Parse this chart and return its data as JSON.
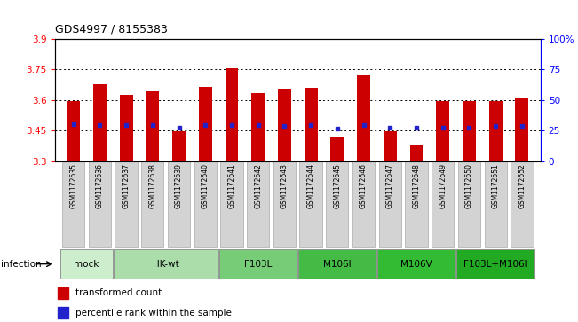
{
  "title": "GDS4997 / 8155383",
  "samples": [
    "GSM1172635",
    "GSM1172636",
    "GSM1172637",
    "GSM1172638",
    "GSM1172639",
    "GSM1172640",
    "GSM1172641",
    "GSM1172642",
    "GSM1172643",
    "GSM1172644",
    "GSM1172645",
    "GSM1172646",
    "GSM1172647",
    "GSM1172648",
    "GSM1172649",
    "GSM1172650",
    "GSM1172651",
    "GSM1172652"
  ],
  "bar_tops": [
    3.595,
    3.678,
    3.625,
    3.64,
    3.445,
    3.662,
    3.755,
    3.633,
    3.655,
    3.66,
    3.415,
    3.72,
    3.445,
    3.375,
    3.595,
    3.595,
    3.592,
    3.605
  ],
  "blue_y": [
    3.48,
    3.476,
    3.474,
    3.474,
    3.462,
    3.474,
    3.476,
    3.474,
    3.472,
    3.474,
    3.46,
    3.474,
    3.462,
    3.462,
    3.464,
    3.464,
    3.472,
    3.472
  ],
  "y_min": 3.3,
  "y_max": 3.9,
  "y_left_ticks": [
    3.3,
    3.45,
    3.6,
    3.75,
    3.9
  ],
  "y_right_pct": [
    0,
    25,
    50,
    75,
    100
  ],
  "y_right_labels": [
    "0",
    "25",
    "50",
    "75",
    "100%"
  ],
  "bar_color": "#cc0000",
  "blue_color": "#2222cc",
  "bar_base": 3.3,
  "bar_width": 0.5,
  "dotted_lines": [
    3.45,
    3.6,
    3.75
  ],
  "groups": [
    {
      "label": "mock",
      "start": 0,
      "end": 1,
      "color": "#cceecc"
    },
    {
      "label": "HK-wt",
      "start": 2,
      "end": 5,
      "color": "#aaddaa"
    },
    {
      "label": "F103L",
      "start": 6,
      "end": 8,
      "color": "#77cc77"
    },
    {
      "label": "M106I",
      "start": 9,
      "end": 11,
      "color": "#44bb44"
    },
    {
      "label": "M106V",
      "start": 12,
      "end": 14,
      "color": "#33bb33"
    },
    {
      "label": "F103L+M106I",
      "start": 15,
      "end": 17,
      "color": "#22aa22"
    }
  ],
  "infection_label": "infection",
  "legend_bar_label": "transformed count",
  "legend_dot_label": "percentile rank within the sample",
  "tick_label_bg": "#d3d3d3",
  "tick_label_edge": "#aaaaaa"
}
